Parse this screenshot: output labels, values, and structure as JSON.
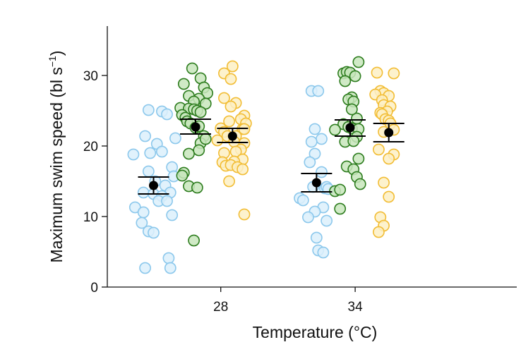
{
  "chart_data": {
    "type": "scatter",
    "title": "",
    "xlabel": "Temperature (°C)",
    "ylabel_main": "Maximum swim speed (bl s",
    "ylabel_sup": "−1",
    "ylabel_close": ")",
    "categories": [
      "28",
      "34"
    ],
    "ylim": [
      0,
      37
    ],
    "yticks": [
      0,
      10,
      20,
      30
    ],
    "grid": false,
    "legend": "none",
    "colors": {
      "blue": {
        "stroke": "#8cc8ec",
        "fill": "#dcf0fb"
      },
      "green": {
        "stroke": "#2e7d1f",
        "fill": "#c8e6bc"
      },
      "yellow": {
        "stroke": "#f2bd35",
        "fill": "#fdf0c4"
      },
      "summary": "#000000"
    },
    "groups": [
      {
        "category": "28",
        "color": "blue",
        "mean": 14.4,
        "ci_low": 13.2,
        "ci_high": 15.6,
        "points": [
          [
            0.22,
            25.1
          ],
          [
            0.3,
            24.9
          ],
          [
            0.33,
            24.5
          ],
          [
            0.2,
            21.4
          ],
          [
            0.38,
            21.1
          ],
          [
            0.27,
            20.3
          ],
          [
            0.13,
            18.8
          ],
          [
            0.23,
            19.0
          ],
          [
            0.3,
            19.2
          ],
          [
            0.36,
            17.0
          ],
          [
            0.22,
            16.4
          ],
          [
            0.37,
            15.7
          ],
          [
            0.26,
            15.0
          ],
          [
            0.32,
            14.4
          ],
          [
            0.19,
            13.4
          ],
          [
            0.25,
            13.2
          ],
          [
            0.35,
            13.4
          ],
          [
            0.3,
            12.9
          ],
          [
            0.28,
            12.2
          ],
          [
            0.33,
            12.2
          ],
          [
            0.14,
            11.3
          ],
          [
            0.19,
            10.6
          ],
          [
            0.36,
            10.2
          ],
          [
            0.18,
            9.1
          ],
          [
            0.22,
            7.9
          ],
          [
            0.25,
            7.7
          ],
          [
            0.34,
            4.1
          ],
          [
            0.2,
            2.7
          ],
          [
            0.35,
            2.7
          ]
        ]
      },
      {
        "category": "28",
        "color": "green",
        "mean": 22.7,
        "ci_low": 21.7,
        "ci_high": 23.8,
        "points": [
          [
            0.48,
            31.0
          ],
          [
            0.53,
            29.6
          ],
          [
            0.43,
            28.8
          ],
          [
            0.55,
            28.3
          ],
          [
            0.57,
            27.5
          ],
          [
            0.46,
            27.1
          ],
          [
            0.52,
            26.7
          ],
          [
            0.49,
            26.3
          ],
          [
            0.56,
            26.0
          ],
          [
            0.41,
            25.4
          ],
          [
            0.46,
            25.3
          ],
          [
            0.49,
            25.2
          ],
          [
            0.51,
            25.0
          ],
          [
            0.53,
            24.8
          ],
          [
            0.42,
            24.4
          ],
          [
            0.44,
            24.0
          ],
          [
            0.45,
            23.5
          ],
          [
            0.47,
            23.2
          ],
          [
            0.5,
            22.6
          ],
          [
            0.52,
            22.8
          ],
          [
            0.55,
            21.4
          ],
          [
            0.53,
            20.4
          ],
          [
            0.56,
            21.0
          ],
          [
            0.46,
            18.9
          ],
          [
            0.52,
            19.4
          ],
          [
            0.43,
            16.2
          ],
          [
            0.42,
            15.8
          ],
          [
            0.46,
            14.3
          ],
          [
            0.51,
            14.1
          ],
          [
            0.49,
            6.6
          ]
        ]
      },
      {
        "category": "28",
        "color": "yellow",
        "mean": 21.4,
        "ci_low": 20.5,
        "ci_high": 22.5,
        "points": [
          [
            0.72,
            31.3
          ],
          [
            0.67,
            30.3
          ],
          [
            0.71,
            29.5
          ],
          [
            0.67,
            26.8
          ],
          [
            0.74,
            26.1
          ],
          [
            0.71,
            25.6
          ],
          [
            0.79,
            24.3
          ],
          [
            0.77,
            23.8
          ],
          [
            0.7,
            23.5
          ],
          [
            0.8,
            23.2
          ],
          [
            0.65,
            22.5
          ],
          [
            0.67,
            22.0
          ],
          [
            0.78,
            22.4
          ],
          [
            0.69,
            21.4
          ],
          [
            0.74,
            21.4
          ],
          [
            0.79,
            22.4
          ],
          [
            0.63,
            20.8
          ],
          [
            0.73,
            20.6
          ],
          [
            0.79,
            20.4
          ],
          [
            0.77,
            19.5
          ],
          [
            0.67,
            19.0
          ],
          [
            0.74,
            19.2
          ],
          [
            0.78,
            18.1
          ],
          [
            0.73,
            17.8
          ],
          [
            0.66,
            17.7
          ],
          [
            0.68,
            17.2
          ],
          [
            0.71,
            17.3
          ],
          [
            0.75,
            17.0
          ],
          [
            0.78,
            16.7
          ],
          [
            0.7,
            15.0
          ],
          [
            0.79,
            10.3
          ]
        ]
      },
      {
        "category": "34",
        "color": "blue",
        "mean": 14.8,
        "ci_low": 13.5,
        "ci_high": 16.1,
        "points": [
          [
            1.19,
            27.8
          ],
          [
            1.23,
            27.8
          ],
          [
            1.21,
            22.4
          ],
          [
            1.25,
            21.0
          ],
          [
            1.19,
            20.6
          ],
          [
            1.21,
            18.9
          ],
          [
            1.18,
            17.7
          ],
          [
            1.25,
            16.3
          ],
          [
            1.27,
            14.0
          ],
          [
            1.2,
            14.2
          ],
          [
            1.28,
            14.2
          ],
          [
            1.29,
            13.9
          ],
          [
            1.12,
            12.6
          ],
          [
            1.14,
            12.3
          ],
          [
            1.26,
            11.3
          ],
          [
            1.21,
            10.7
          ],
          [
            1.17,
            9.9
          ],
          [
            1.28,
            9.4
          ],
          [
            1.22,
            7.0
          ],
          [
            1.23,
            5.2
          ],
          [
            1.26,
            4.9
          ]
        ]
      },
      {
        "category": "34",
        "color": "green",
        "mean": 22.6,
        "ci_low": 21.4,
        "ci_high": 23.7,
        "points": [
          [
            1.47,
            31.9
          ],
          [
            1.38,
            30.3
          ],
          [
            1.4,
            30.5
          ],
          [
            1.42,
            30.4
          ],
          [
            1.45,
            29.9
          ],
          [
            1.39,
            29.2
          ],
          [
            1.43,
            26.9
          ],
          [
            1.41,
            26.6
          ],
          [
            1.44,
            26.3
          ],
          [
            1.46,
            23.9
          ],
          [
            1.43,
            25.2
          ],
          [
            1.38,
            23.1
          ],
          [
            1.41,
            22.7
          ],
          [
            1.43,
            22.5
          ],
          [
            1.33,
            22.3
          ],
          [
            1.47,
            22.4
          ],
          [
            1.46,
            21.3
          ],
          [
            1.39,
            20.6
          ],
          [
            1.44,
            20.7
          ],
          [
            1.47,
            18.2
          ],
          [
            1.4,
            17.1
          ],
          [
            1.44,
            16.7
          ],
          [
            1.46,
            15.6
          ],
          [
            1.33,
            13.6
          ],
          [
            1.36,
            13.8
          ],
          [
            1.48,
            14.6
          ],
          [
            1.36,
            11.1
          ]
        ]
      },
      {
        "category": "34",
        "color": "yellow",
        "mean": 21.9,
        "ci_low": 20.6,
        "ci_high": 23.2,
        "points": [
          [
            1.58,
            30.4
          ],
          [
            1.68,
            30.3
          ],
          [
            1.6,
            27.8
          ],
          [
            1.62,
            27.5
          ],
          [
            1.57,
            27.3
          ],
          [
            1.65,
            27.1
          ],
          [
            1.61,
            26.5
          ],
          [
            1.62,
            25.8
          ],
          [
            1.66,
            25.6
          ],
          [
            1.64,
            24.9
          ],
          [
            1.6,
            24.7
          ],
          [
            1.61,
            24.5
          ],
          [
            1.63,
            23.8
          ],
          [
            1.65,
            23.6
          ],
          [
            1.66,
            23.2
          ],
          [
            1.68,
            22.3
          ],
          [
            1.62,
            22.0
          ],
          [
            1.59,
            19.5
          ],
          [
            1.68,
            18.8
          ],
          [
            1.65,
            18.2
          ],
          [
            1.62,
            14.8
          ],
          [
            1.65,
            12.8
          ],
          [
            1.6,
            9.9
          ],
          [
            1.62,
            8.7
          ],
          [
            1.59,
            7.8
          ]
        ]
      }
    ]
  }
}
